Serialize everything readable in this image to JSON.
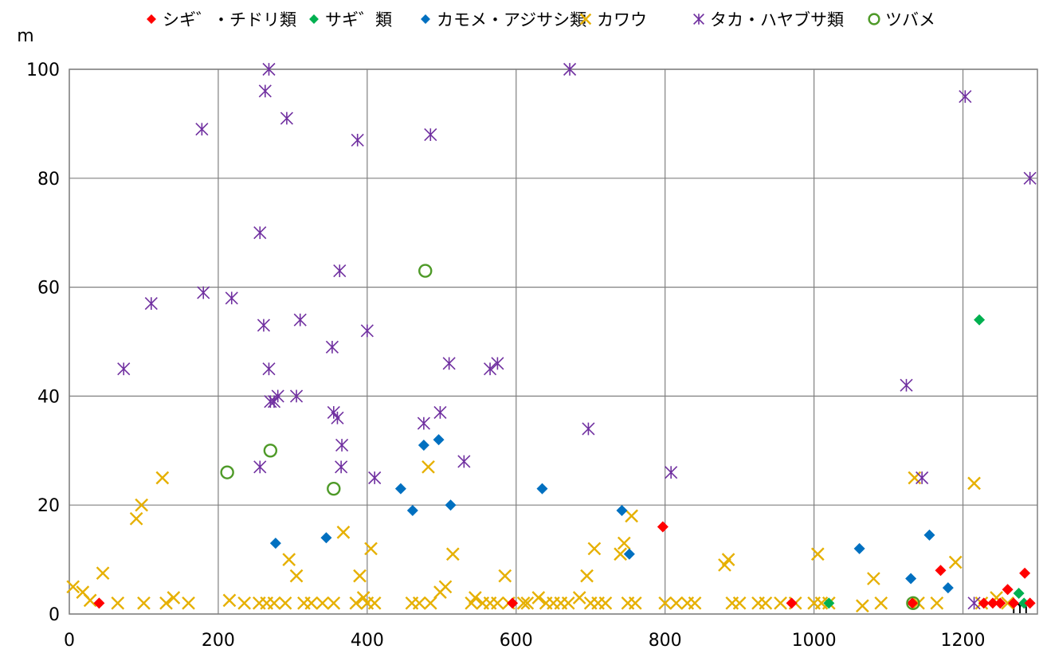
{
  "chart_data": {
    "type": "scatter",
    "title": "",
    "x_unit": "m",
    "y_unit": "m",
    "xlim": [
      0,
      1300
    ],
    "ylim": [
      0,
      100
    ],
    "x_ticks": [
      "0",
      "200",
      "400",
      "600",
      "800",
      "1000",
      "1200"
    ],
    "y_ticks": [
      "0",
      "20",
      "40",
      "60",
      "80",
      "100"
    ],
    "grid": true,
    "legend_position": "top",
    "series": [
      {
        "name": "シギ゛・チドリ類",
        "marker": "diamond",
        "color": "#ff0000",
        "points": [
          [
            40,
            2
          ],
          [
            595,
            2
          ],
          [
            797,
            16
          ],
          [
            970,
            2
          ],
          [
            1132,
            2
          ],
          [
            1170,
            8
          ],
          [
            1228,
            2
          ],
          [
            1240,
            2
          ],
          [
            1250,
            2
          ],
          [
            1260,
            4.5
          ],
          [
            1268,
            2
          ],
          [
            1283,
            7.5
          ],
          [
            1290,
            2
          ]
        ]
      },
      {
        "name": "サギ゛類",
        "marker": "diamond",
        "color": "#00b050",
        "points": [
          [
            1020,
            2
          ],
          [
            1222,
            54
          ],
          [
            1275,
            3.8
          ],
          [
            1282,
            2
          ]
        ]
      },
      {
        "name": "カモメ・アジサシ類",
        "marker": "diamond",
        "color": "#0070c0",
        "points": [
          [
            277,
            13
          ],
          [
            345,
            14
          ],
          [
            445,
            23
          ],
          [
            461,
            19
          ],
          [
            476,
            31
          ],
          [
            496,
            32
          ],
          [
            512,
            20
          ],
          [
            635,
            23
          ],
          [
            742,
            19
          ],
          [
            752,
            11
          ],
          [
            1061,
            12
          ],
          [
            1130,
            6.5
          ],
          [
            1155,
            14.5
          ],
          [
            1180,
            4.8
          ]
        ]
      },
      {
        "name": "カワウ",
        "marker": "x",
        "color": "#e6b000",
        "points": [
          [
            5,
            5
          ],
          [
            18,
            4
          ],
          [
            28,
            2.5
          ],
          [
            45,
            7.5
          ],
          [
            65,
            2
          ],
          [
            90,
            17.5
          ],
          [
            97,
            20
          ],
          [
            100,
            2
          ],
          [
            125,
            25
          ],
          [
            130,
            2
          ],
          [
            140,
            3
          ],
          [
            160,
            2
          ],
          [
            215,
            2.5
          ],
          [
            235,
            2
          ],
          [
            255,
            2
          ],
          [
            265,
            2
          ],
          [
            275,
            2
          ],
          [
            290,
            2
          ],
          [
            295,
            10
          ],
          [
            305,
            7
          ],
          [
            315,
            2
          ],
          [
            325,
            2
          ],
          [
            340,
            2
          ],
          [
            355,
            2
          ],
          [
            368,
            15
          ],
          [
            385,
            2
          ],
          [
            390,
            7
          ],
          [
            395,
            3
          ],
          [
            400,
            2
          ],
          [
            405,
            12
          ],
          [
            410,
            2
          ],
          [
            460,
            2
          ],
          [
            470,
            2
          ],
          [
            482,
            27
          ],
          [
            485,
            2
          ],
          [
            498,
            4
          ],
          [
            505,
            5
          ],
          [
            515,
            11
          ],
          [
            540,
            2
          ],
          [
            545,
            3
          ],
          [
            555,
            2
          ],
          [
            565,
            2
          ],
          [
            575,
            2
          ],
          [
            585,
            7
          ],
          [
            590,
            2
          ],
          [
            610,
            2
          ],
          [
            615,
            2
          ],
          [
            630,
            3
          ],
          [
            640,
            2
          ],
          [
            650,
            2
          ],
          [
            660,
            2
          ],
          [
            670,
            2
          ],
          [
            685,
            3
          ],
          [
            695,
            7
          ],
          [
            700,
            2
          ],
          [
            705,
            12
          ],
          [
            710,
            2
          ],
          [
            720,
            2
          ],
          [
            740,
            11
          ],
          [
            745,
            13
          ],
          [
            750,
            2
          ],
          [
            755,
            18
          ],
          [
            760,
            2
          ],
          [
            800,
            2
          ],
          [
            815,
            2
          ],
          [
            830,
            2
          ],
          [
            840,
            2
          ],
          [
            880,
            9
          ],
          [
            885,
            10
          ],
          [
            890,
            2
          ],
          [
            900,
            2
          ],
          [
            925,
            2
          ],
          [
            935,
            2
          ],
          [
            955,
            2
          ],
          [
            975,
            2
          ],
          [
            1000,
            2
          ],
          [
            1005,
            11
          ],
          [
            1010,
            2
          ],
          [
            1020,
            2
          ],
          [
            1065,
            1.5
          ],
          [
            1080,
            6.5
          ],
          [
            1090,
            2
          ],
          [
            1135,
            25
          ],
          [
            1140,
            2
          ],
          [
            1165,
            2
          ],
          [
            1190,
            9.5
          ],
          [
            1215,
            24
          ],
          [
            1225,
            2
          ],
          [
            1245,
            3
          ],
          [
            1260,
            2
          ]
        ]
      },
      {
        "name": "タカ・ハヤブサ類",
        "marker": "star",
        "color": "#7030a0",
        "points": [
          [
            73,
            45
          ],
          [
            110,
            57
          ],
          [
            178,
            89
          ],
          [
            180,
            59
          ],
          [
            218,
            58
          ],
          [
            256,
            27
          ],
          [
            256,
            70
          ],
          [
            261,
            53
          ],
          [
            263,
            96
          ],
          [
            268,
            45
          ],
          [
            268,
            100
          ],
          [
            270,
            39
          ],
          [
            275,
            39
          ],
          [
            280,
            40
          ],
          [
            292,
            91
          ],
          [
            305,
            40
          ],
          [
            310,
            54
          ],
          [
            353,
            49
          ],
          [
            355,
            37
          ],
          [
            360,
            36
          ],
          [
            363,
            63
          ],
          [
            365,
            27
          ],
          [
            366,
            31
          ],
          [
            387,
            87
          ],
          [
            400,
            52
          ],
          [
            410,
            25
          ],
          [
            476,
            35
          ],
          [
            485,
            88
          ],
          [
            498,
            37
          ],
          [
            510,
            46
          ],
          [
            530,
            28
          ],
          [
            565,
            45
          ],
          [
            575,
            46
          ],
          [
            672,
            100
          ],
          [
            697,
            34
          ],
          [
            808,
            26
          ],
          [
            1124,
            42
          ],
          [
            1145,
            25
          ],
          [
            1203,
            95
          ],
          [
            1215,
            2
          ],
          [
            1290,
            80
          ]
        ]
      },
      {
        "name": "ツバメ",
        "marker": "circle",
        "color": "#4e9a28",
        "points": [
          [
            212,
            26
          ],
          [
            270,
            30
          ],
          [
            355,
            23
          ],
          [
            478,
            63
          ],
          [
            1133,
            2
          ]
        ]
      }
    ]
  }
}
